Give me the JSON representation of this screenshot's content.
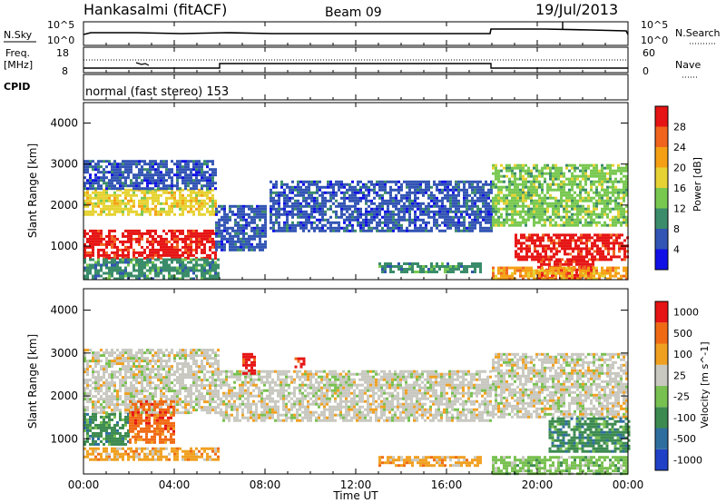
{
  "header": {
    "station": "Hankasalmi (fitACF)",
    "beam": "Beam 09",
    "date": "19/Jul/2013"
  },
  "noise_panel": {
    "left_label": "N.Sky",
    "left_ticks": [
      "10^5",
      "10^0"
    ],
    "right_ticks": [
      "10^5",
      "10^0"
    ],
    "right_label": "N.Search"
  },
  "freq_panel": {
    "left_label_top": "Freq.",
    "left_label_unit": "[MHz]",
    "left_ticks": [
      "18",
      "8"
    ],
    "right_ticks": [
      "60",
      "0"
    ],
    "right_label": "Nave"
  },
  "cpid_panel": {
    "label": "CPID",
    "text": "normal (fast stereo) 153"
  },
  "chart_data": [
    {
      "type": "heatmap",
      "name": "power",
      "ylabel": "Slant Range [km]",
      "y_ticks": [
        "1000",
        "2000",
        "3000",
        "4000"
      ],
      "ylim": [
        180,
        4500
      ],
      "colorbar_label": "Power [dB]",
      "colorbar_ticks": [
        "4",
        "8",
        "12",
        "16",
        "20",
        "24",
        "28"
      ],
      "colors": [
        "#1010e6",
        "#3254b4",
        "#3a8c6a",
        "#78c850",
        "#e6d232",
        "#f5a014",
        "#f0641e",
        "#e61414"
      ],
      "bands": [
        {
          "x0": 0.0,
          "x1": 5.8,
          "y0": 700,
          "y1": 1400,
          "level": 7
        },
        {
          "x0": 0.0,
          "x1": 5.8,
          "y0": 1800,
          "y1": 2400,
          "level": 4
        },
        {
          "x0": 0.0,
          "x1": 5.8,
          "y0": 2400,
          "y1": 3100,
          "level": 1
        },
        {
          "x0": 0.0,
          "x1": 6.0,
          "y0": 200,
          "y1": 700,
          "level": 2
        },
        {
          "x0": 5.8,
          "x1": 8.0,
          "y0": 900,
          "y1": 2000,
          "level": 1
        },
        {
          "x0": 8.2,
          "x1": 18.0,
          "y0": 1400,
          "y1": 2600,
          "level": 1
        },
        {
          "x0": 13.0,
          "x1": 17.5,
          "y0": 400,
          "y1": 600,
          "level": 2
        },
        {
          "x0": 18.0,
          "x1": 24.0,
          "y0": 1500,
          "y1": 3000,
          "level": 3
        },
        {
          "x0": 19.0,
          "x1": 24.0,
          "y0": 700,
          "y1": 1300,
          "level": 7
        },
        {
          "x0": 20.0,
          "x1": 22.5,
          "y0": 200,
          "y1": 650,
          "level": 7
        },
        {
          "x0": 18.0,
          "x1": 24.0,
          "y0": 200,
          "y1": 500,
          "level": 5
        }
      ]
    },
    {
      "type": "heatmap",
      "name": "velocity",
      "ylabel": "Slant Range [km]",
      "y_ticks": [
        "1000",
        "2000",
        "3000",
        "4000"
      ],
      "ylim": [
        180,
        4500
      ],
      "colorbar_label": "Velocity [m s^-1]",
      "colorbar_ticks": [
        "1000",
        "500",
        "100",
        "25",
        "-25",
        "-100",
        "-500",
        "-1000"
      ],
      "colors": [
        "#2040c8",
        "#2e6e9e",
        "#3c8a50",
        "#78c050",
        "#c8c8c0",
        "#f0a020",
        "#f06a14",
        "#e61414"
      ],
      "bands": [
        {
          "x0": 0.0,
          "x1": 6.0,
          "y0": 1600,
          "y1": 3100,
          "level": 4
        },
        {
          "x0": 0.0,
          "x1": 2.0,
          "y0": 900,
          "y1": 1600,
          "level": 2
        },
        {
          "x0": 2.0,
          "x1": 4.0,
          "y0": 900,
          "y1": 1900,
          "level": 6
        },
        {
          "x0": 0.0,
          "x1": 6.0,
          "y0": 500,
          "y1": 800,
          "level": 5
        },
        {
          "x0": 6.0,
          "x1": 18.0,
          "y0": 1400,
          "y1": 2600,
          "level": 4
        },
        {
          "x0": 13.0,
          "x1": 17.5,
          "y0": 400,
          "y1": 600,
          "level": 5
        },
        {
          "x0": 18.0,
          "x1": 24.0,
          "y0": 1500,
          "y1": 3000,
          "level": 4
        },
        {
          "x0": 20.5,
          "x1": 24.0,
          "y0": 700,
          "y1": 1500,
          "level": 2
        },
        {
          "x0": 18.0,
          "x1": 24.0,
          "y0": 200,
          "y1": 600,
          "level": 3
        },
        {
          "x0": 7.0,
          "x1": 7.5,
          "y0": 2500,
          "y1": 3000,
          "level": 7
        },
        {
          "x0": 9.3,
          "x1": 9.7,
          "y0": 2650,
          "y1": 2900,
          "level": 7
        }
      ]
    }
  ],
  "x_axis": {
    "label": "Time UT",
    "ticks": [
      "00:00",
      "04:00",
      "08:00",
      "12:00",
      "16:00",
      "20:00",
      "00:00"
    ],
    "xlim": [
      0,
      24
    ]
  }
}
